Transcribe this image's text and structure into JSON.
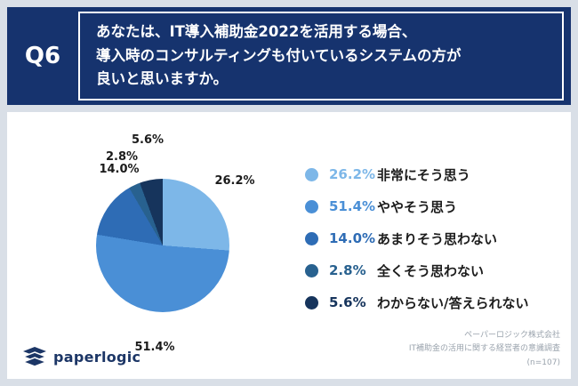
{
  "header": {
    "number": "Q6",
    "question": "あなたは、IT導入補助金2022を活用する場合、\n導入時のコンサルティングも付いているシステムの方が\n良いと思いますか。",
    "bg_color": "#16336e"
  },
  "chart_data": {
    "type": "pie",
    "title": "",
    "labels": [
      "非常にそう思う",
      "ややそう思う",
      "あまりそう思わない",
      "全くそう思わない",
      "わからない/答えられない"
    ],
    "values": [
      26.2,
      51.4,
      14.0,
      2.8,
      5.6
    ],
    "value_labels": [
      "26.2%",
      "51.4%",
      "14.0%",
      "2.8%",
      "5.6%"
    ],
    "colors": [
      "#7db7e8",
      "#4a8fd6",
      "#2e6cb5",
      "#28618f",
      "#16345c"
    ],
    "start_angle_deg": 0,
    "direction": "clockwise",
    "legend_position": "right"
  },
  "footer": {
    "logo_text": "paperlogic",
    "source_lines": [
      "ペーパーロジック株式会社",
      "IT補助金の活用に関する経営者の意識調査",
      "(n=107)"
    ]
  }
}
